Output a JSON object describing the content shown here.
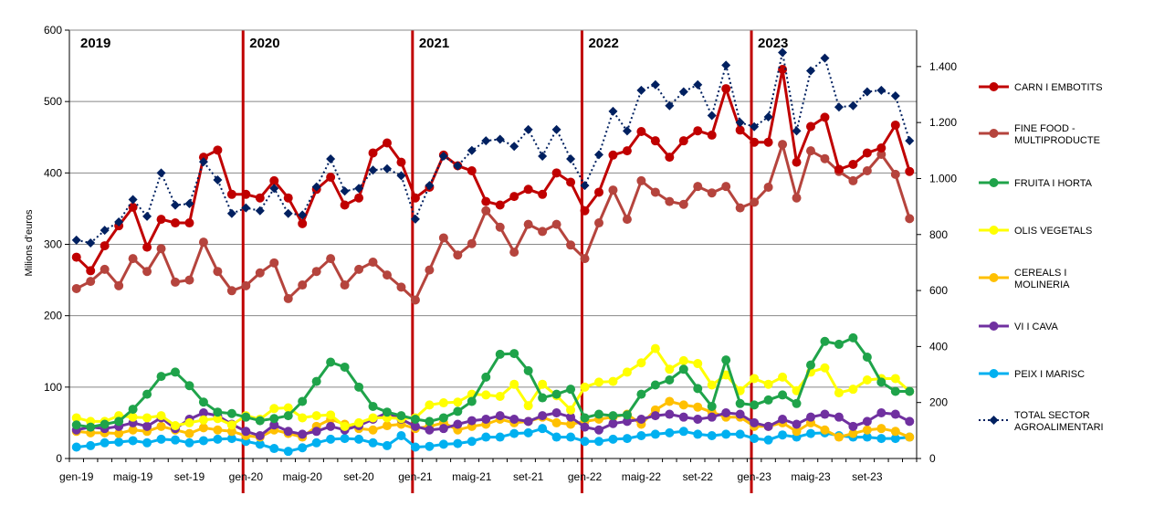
{
  "chart_data": {
    "type": "line",
    "ylabel": "Milions d'euros",
    "y_left": {
      "min": 0,
      "max": 600,
      "ticks": [
        0,
        100,
        200,
        300,
        400,
        500,
        600
      ]
    },
    "y_right": {
      "min": 0,
      "max": 1530,
      "ticks": [
        0,
        200,
        400,
        600,
        800,
        1000,
        1200,
        1400
      ],
      "tick_labels": [
        "0",
        "200",
        "400",
        "600",
        "800",
        "1.000",
        "1.200",
        "1.400"
      ]
    },
    "x_tick_labels": [
      {
        "index": 0,
        "label": "gen-19"
      },
      {
        "index": 4,
        "label": "maig-19"
      },
      {
        "index": 8,
        "label": "set-19"
      },
      {
        "index": 12,
        "label": "gen-20"
      },
      {
        "index": 16,
        "label": "maig-20"
      },
      {
        "index": 20,
        "label": "set-20"
      },
      {
        "index": 24,
        "label": "gen-21"
      },
      {
        "index": 28,
        "label": "maig-21"
      },
      {
        "index": 32,
        "label": "set-21"
      },
      {
        "index": 36,
        "label": "gen-22"
      },
      {
        "index": 40,
        "label": "maig-22"
      },
      {
        "index": 44,
        "label": "set-22"
      },
      {
        "index": 48,
        "label": "gen-23"
      },
      {
        "index": 52,
        "label": "maig-23"
      },
      {
        "index": 56,
        "label": "set-23"
      }
    ],
    "grid": "horizontal",
    "legend_position": "right",
    "year_markers": [
      {
        "label": "2019",
        "index": 0
      },
      {
        "label": "2020",
        "index": 12
      },
      {
        "label": "2021",
        "index": 24
      },
      {
        "label": "2022",
        "index": 36
      },
      {
        "label": "2023",
        "index": 48
      }
    ],
    "series": [
      {
        "name": "CARN I EMBOTITS",
        "axis": "left",
        "color": "#c00000",
        "marker": "circle",
        "dash": "solid",
        "width": 3,
        "values": [
          282,
          263,
          298,
          326,
          352,
          296,
          335,
          330,
          330,
          422,
          432,
          370,
          370,
          365,
          389,
          365,
          329,
          377,
          394,
          355,
          365,
          428,
          442,
          415,
          365,
          380,
          425,
          410,
          403,
          360,
          355,
          367,
          377,
          370,
          400,
          387,
          347,
          373,
          425,
          431,
          458,
          445,
          422,
          445,
          459,
          453,
          518,
          460,
          443,
          443,
          545,
          415,
          465,
          478,
          405,
          412,
          428,
          435,
          467,
          402
        ]
      },
      {
        "name": "FINE FOOD - MULTIPRODUCTE",
        "axis": "left",
        "color": "#b5443d",
        "marker": "circle",
        "dash": "solid",
        "width": 3,
        "values": [
          238,
          248,
          265,
          242,
          280,
          262,
          294,
          247,
          250,
          303,
          262,
          235,
          242,
          260,
          274,
          224,
          243,
          262,
          280,
          243,
          265,
          275,
          257,
          240,
          222,
          264,
          309,
          285,
          301,
          347,
          324,
          289,
          328,
          318,
          328,
          299,
          280,
          330,
          376,
          335,
          389,
          373,
          360,
          356,
          381,
          372,
          381,
          351,
          359,
          380,
          440,
          365,
          431,
          420,
          402,
          389,
          403,
          426,
          398,
          336
        ]
      },
      {
        "name": "FRUITA I HORTA",
        "axis": "left",
        "color": "#1fa34a",
        "marker": "circle",
        "dash": "solid",
        "width": 3,
        "values": [
          47,
          44,
          48,
          52,
          69,
          90,
          115,
          121,
          102,
          79,
          65,
          63,
          58,
          53,
          56,
          60,
          80,
          108,
          135,
          128,
          100,
          73,
          65,
          60,
          55,
          52,
          57,
          66,
          80,
          114,
          146,
          147,
          123,
          85,
          90,
          97,
          57,
          62,
          60,
          61,
          90,
          103,
          110,
          125,
          98,
          73,
          138,
          77,
          75,
          82,
          89,
          77,
          131,
          164,
          160,
          169,
          142,
          107,
          94,
          94
        ]
      },
      {
        "name": "OLIS VEGETALS",
        "axis": "left",
        "color": "#ffff00",
        "marker": "circle",
        "dash": "solid",
        "width": 3,
        "values": [
          57,
          52,
          52,
          60,
          58,
          57,
          60,
          46,
          50,
          54,
          56,
          47,
          60,
          55,
          70,
          71,
          57,
          60,
          61,
          45,
          50,
          57,
          57,
          56,
          57,
          75,
          78,
          79,
          90,
          89,
          87,
          104,
          74,
          104,
          88,
          68,
          100,
          107,
          108,
          121,
          134,
          154,
          125,
          137,
          133,
          103,
          117,
          95,
          112,
          104,
          114,
          95,
          121,
          127,
          92,
          97,
          110,
          112,
          112,
          94
        ]
      },
      {
        "name": "CEREALS I MOLINERIA",
        "axis": "left",
        "color": "#ffc000",
        "marker": "circle",
        "dash": "solid",
        "width": 3,
        "values": [
          38,
          36,
          36,
          35,
          40,
          38,
          45,
          40,
          35,
          43,
          40,
          38,
          32,
          30,
          40,
          35,
          30,
          45,
          55,
          48,
          42,
          40,
          46,
          48,
          42,
          45,
          50,
          40,
          45,
          48,
          55,
          50,
          52,
          58,
          50,
          48,
          52,
          55,
          58,
          62,
          48,
          68,
          80,
          75,
          72,
          65,
          58,
          58,
          45,
          45,
          50,
          38,
          50,
          40,
          30,
          35,
          40,
          42,
          38,
          30
        ]
      },
      {
        "name": "VI I CAVA",
        "axis": "left",
        "color": "#7030a0",
        "marker": "circle",
        "dash": "solid",
        "width": 3,
        "values": [
          40,
          44,
          42,
          45,
          50,
          45,
          57,
          42,
          55,
          64,
          60,
          48,
          38,
          32,
          47,
          38,
          34,
          38,
          45,
          40,
          46,
          55,
          64,
          55,
          45,
          40,
          42,
          48,
          53,
          55,
          60,
          55,
          52,
          60,
          64,
          58,
          44,
          40,
          49,
          52,
          55,
          60,
          62,
          58,
          55,
          58,
          64,
          62,
          50,
          45,
          55,
          48,
          58,
          62,
          58,
          45,
          52,
          64,
          62,
          52
        ]
      },
      {
        "name": "PEIX I MARISC",
        "axis": "left",
        "color": "#00b0f0",
        "marker": "circle",
        "dash": "solid",
        "width": 3,
        "values": [
          16,
          18,
          22,
          23,
          25,
          22,
          27,
          26,
          22,
          25,
          27,
          28,
          24,
          20,
          14,
          10,
          15,
          22,
          27,
          28,
          27,
          22,
          18,
          32,
          16,
          17,
          20,
          21,
          24,
          30,
          30,
          35,
          36,
          42,
          30,
          30,
          24,
          24,
          27,
          28,
          32,
          34,
          36,
          38,
          34,
          32,
          34,
          34,
          28,
          26,
          33,
          30,
          35,
          36,
          32,
          30,
          30,
          28,
          28,
          30
        ]
      },
      {
        "name": "TOTAL SECTOR AGROALIMENTARI",
        "axis": "right",
        "color": "#002060",
        "marker": "diamond",
        "dash": "dotted",
        "width": 2,
        "values": [
          780,
          770,
          815,
          845,
          925,
          865,
          1020,
          905,
          910,
          1060,
          995,
          875,
          895,
          885,
          965,
          875,
          870,
          970,
          1070,
          955,
          965,
          1030,
          1035,
          1010,
          855,
          975,
          1080,
          1045,
          1100,
          1135,
          1140,
          1115,
          1175,
          1080,
          1175,
          1070,
          975,
          1085,
          1240,
          1170,
          1315,
          1335,
          1260,
          1310,
          1335,
          1225,
          1405,
          1200,
          1185,
          1220,
          1450,
          1170,
          1385,
          1430,
          1255,
          1260,
          1310,
          1315,
          1295,
          1135
        ]
      }
    ]
  }
}
